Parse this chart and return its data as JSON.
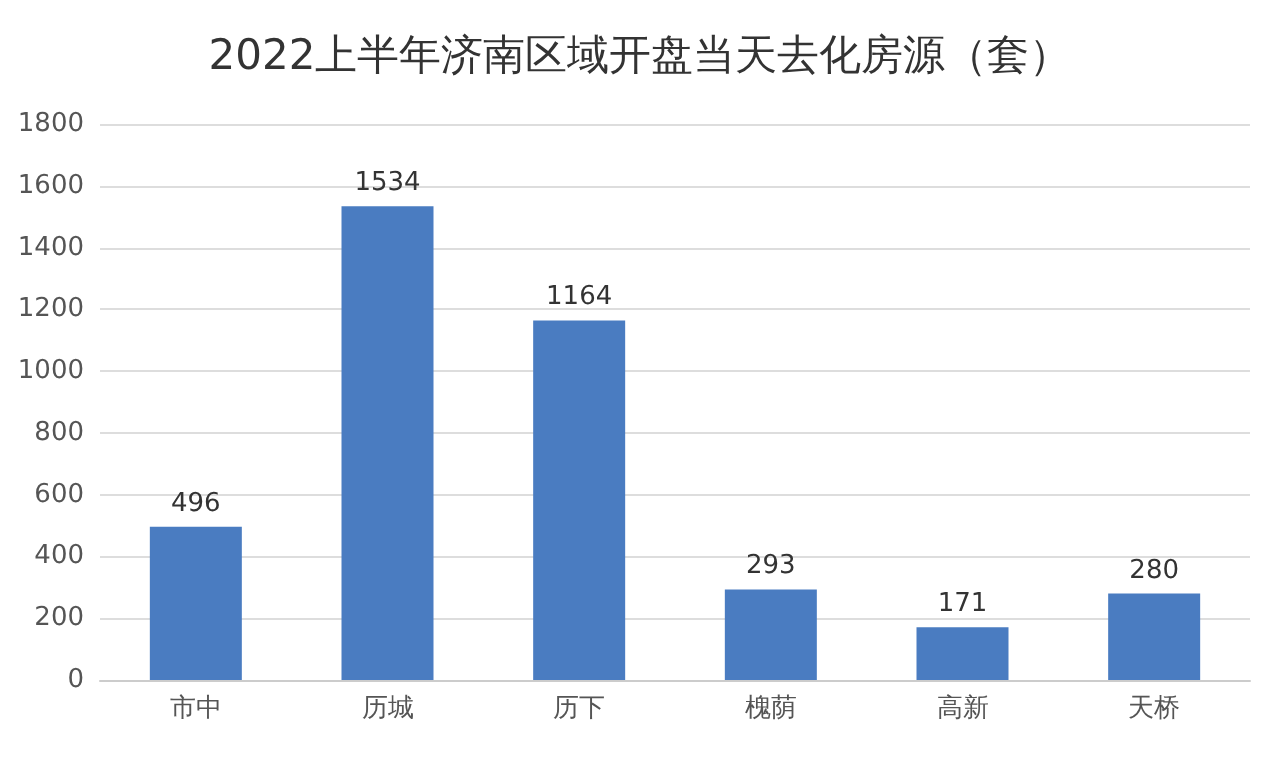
{
  "chart_data": {
    "type": "bar",
    "title": "2022上半年济南区域开盘当天去化房源（套）",
    "categories": [
      "市中",
      "历城",
      "历下",
      "槐荫",
      "高新",
      "天桥"
    ],
    "values": [
      496,
      1534,
      1164,
      293,
      171,
      280
    ],
    "color": "#4a7cc1",
    "ylim": [
      0,
      1800
    ],
    "yticks": [
      0,
      200,
      400,
      600,
      800,
      1000,
      1200,
      1400,
      1600,
      1800
    ],
    "grid": "y",
    "data_labels": true
  }
}
